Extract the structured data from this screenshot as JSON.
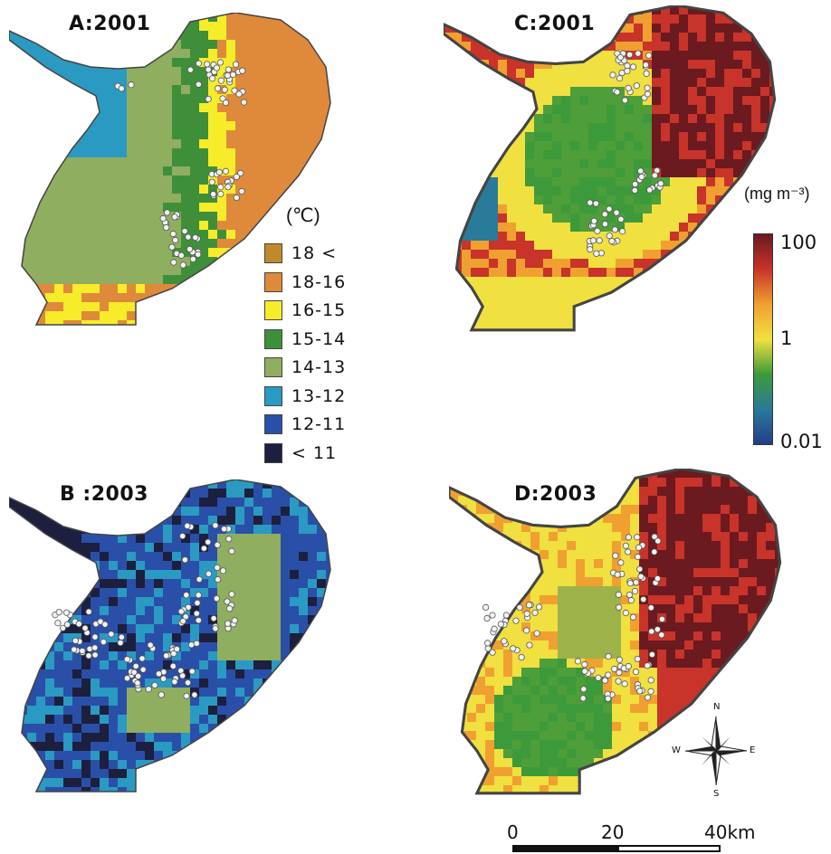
{
  "panels": [
    {
      "id": "A",
      "title": "A:2001"
    },
    {
      "id": "B",
      "title": "B :2003"
    },
    {
      "id": "C",
      "title": "C:2001"
    },
    {
      "id": "D",
      "title": "D:2003"
    }
  ],
  "temperature_legend": {
    "unit": "(℃)",
    "classes": [
      {
        "label": "18 <",
        "color": "#c08a2c"
      },
      {
        "label": "18-16",
        "color": "#de8a3a"
      },
      {
        "label": "16-15",
        "color": "#f6ec2a"
      },
      {
        "label": "15-14",
        "color": "#3f8f3a"
      },
      {
        "label": "14-13",
        "color": "#8fae60"
      },
      {
        "label": "13-12",
        "color": "#2a9ac2"
      },
      {
        "label": "12-11",
        "color": "#2a4fa8"
      },
      {
        "label": "< 11",
        "color": "#1c1f3d"
      }
    ]
  },
  "chlorophyll_legend": {
    "unit": "(mg m⁻³)",
    "ticks": [
      "100",
      "1",
      "0.01"
    ],
    "colors": [
      "#6b1a1f",
      "#c8332a",
      "#f0a030",
      "#f0e040",
      "#3d9a3a",
      "#2a7a9a",
      "#213f8a"
    ]
  },
  "scale_bar": {
    "labels": [
      "0",
      "20",
      "40km"
    ]
  },
  "compass": {
    "labels": [
      "N",
      "E",
      "S",
      "W"
    ]
  }
}
